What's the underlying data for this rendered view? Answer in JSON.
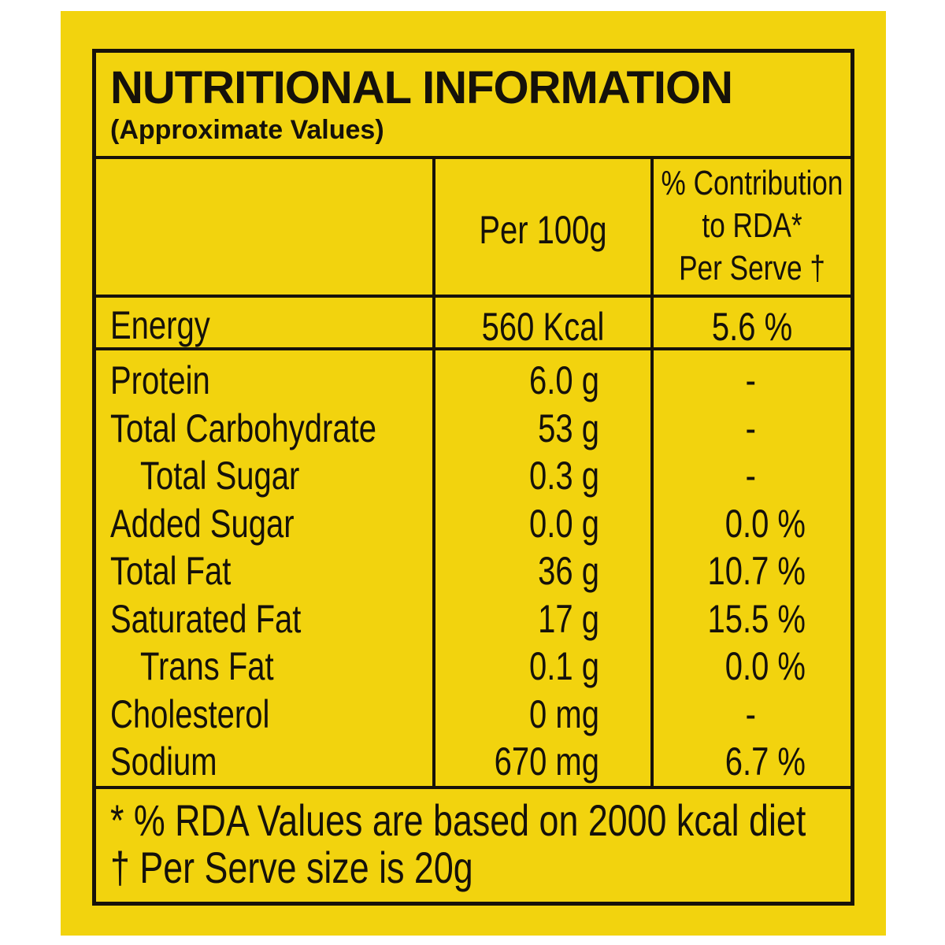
{
  "title": "NUTRITIONAL INFORMATION",
  "subtitle": "(Approximate Values)",
  "colors": {
    "background": "#f2d30e",
    "ink": "#17120a"
  },
  "columns": {
    "per100": "Per 100g",
    "rda_line1": "% Contribution",
    "rda_line2": "to  RDA*",
    "rda_line3": "Per Serve †"
  },
  "energy": {
    "label": "Energy",
    "per100": "560 Kcal",
    "rda": "5.6 %"
  },
  "rows": [
    {
      "label": "Protein",
      "per100": "6.0 g",
      "rda": "-"
    },
    {
      "label": "Total Carbohydrate",
      "per100": "53 g",
      "rda": "-"
    },
    {
      "label": "Total Sugar",
      "per100": "0.3 g",
      "rda": "-"
    },
    {
      "label": "Added Sugar",
      "per100": "0.0 g",
      "rda": "0.0 %"
    },
    {
      "label": "Total Fat",
      "per100": "36 g",
      "rda": "10.7 %"
    },
    {
      "label": "Saturated Fat",
      "per100": "17 g",
      "rda": "15.5 %"
    },
    {
      "label": "Trans Fat",
      "per100": "0.1 g",
      "rda": "0.0 %"
    },
    {
      "label": "Cholesterol",
      "per100": "0 mg",
      "rda": "-"
    },
    {
      "label": "Sodium",
      "per100": "670 mg",
      "rda": "6.7 %"
    }
  ],
  "footnotes": [
    "* % RDA Values are based on 2000 kcal diet",
    "† Per Serve size is 20g"
  ]
}
